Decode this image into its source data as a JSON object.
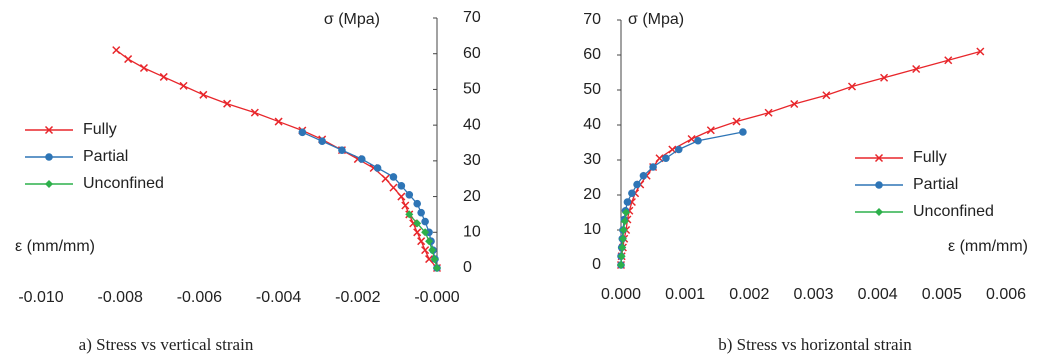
{
  "chart_data": [
    {
      "type": "line",
      "caption": "a) Stress vs vertical strain",
      "y_label": "σ (Mpa)",
      "x_label": "ε (mm/mm)",
      "y_axis_side": "right",
      "legend": "left",
      "xlim": [
        -0.01,
        0.0
      ],
      "ylim": [
        0,
        70
      ],
      "xticks": [
        {
          "value": -0.01,
          "label": "-0.010"
        },
        {
          "value": -0.008,
          "label": "-0.008"
        },
        {
          "value": -0.006,
          "label": "-0.006"
        },
        {
          "value": -0.004,
          "label": "-0.004"
        },
        {
          "value": -0.002,
          "label": "-0.002"
        },
        {
          "value": 0.0,
          "label": "-0.000"
        }
      ],
      "yticks": [
        0,
        10,
        20,
        30,
        40,
        50,
        60,
        70
      ],
      "series": [
        {
          "name": "Fully",
          "color": "#e8262b",
          "marker": "x",
          "x": [
            -0.0081,
            -0.0078,
            -0.0074,
            -0.0069,
            -0.0064,
            -0.0059,
            -0.0053,
            -0.0046,
            -0.004,
            -0.0034,
            -0.0029,
            -0.0024,
            -0.002,
            -0.0016,
            -0.0013,
            -0.0011,
            -0.0009,
            -0.0008,
            -0.0007,
            -0.0006,
            -0.0005,
            -0.0004,
            -0.0003,
            -0.0002,
            0
          ],
          "values": [
            61,
            58.5,
            56,
            53.5,
            51,
            48.5,
            46,
            43.5,
            41,
            38.5,
            36,
            33,
            30.5,
            28,
            25,
            22.5,
            20,
            17.5,
            15,
            12.5,
            10,
            7.5,
            5,
            2.5,
            0
          ]
        },
        {
          "name": "Partial",
          "color": "#2e75b6",
          "marker": "circle",
          "x": [
            -0.0034,
            -0.0029,
            -0.0024,
            -0.0019,
            -0.0015,
            -0.0011,
            -0.0009,
            -0.0007,
            -0.0005,
            -0.0004,
            -0.0003,
            -0.0002,
            -0.00015,
            -0.0001,
            -5e-05,
            0
          ],
          "values": [
            38,
            35.5,
            33,
            30.5,
            28,
            25.5,
            23,
            20.5,
            18,
            15.5,
            13,
            10,
            7.5,
            5,
            2.5,
            0
          ]
        },
        {
          "name": "Unconfined",
          "color": "#2db04b",
          "marker": "diamond",
          "x": [
            -0.0007,
            -0.0005,
            -0.0003,
            -0.0002,
            -0.00012,
            -6e-05,
            0
          ],
          "values": [
            15,
            12.5,
            10,
            7.5,
            5,
            2.5,
            0
          ]
        }
      ]
    },
    {
      "type": "line",
      "caption": "b) Stress vs horizontal strain",
      "y_label": "σ (Mpa)",
      "x_label": "ε (mm/mm)",
      "y_axis_side": "left",
      "legend": "right",
      "xlim": [
        0.0,
        0.006
      ],
      "ylim": [
        0,
        70
      ],
      "xticks": [
        {
          "value": 0.0,
          "label": "0.000"
        },
        {
          "value": 0.001,
          "label": "0.001"
        },
        {
          "value": 0.002,
          "label": "0.002"
        },
        {
          "value": 0.003,
          "label": "0.003"
        },
        {
          "value": 0.004,
          "label": "0.004"
        },
        {
          "value": 0.005,
          "label": "0.005"
        },
        {
          "value": 0.006,
          "label": "0.006"
        }
      ],
      "yticks": [
        0,
        10,
        20,
        30,
        40,
        50,
        60,
        70
      ],
      "series": [
        {
          "name": "Fully",
          "color": "#e8262b",
          "marker": "x",
          "x": [
            0.0056,
            0.0051,
            0.0046,
            0.0041,
            0.0036,
            0.0032,
            0.0027,
            0.0023,
            0.0018,
            0.0014,
            0.0011,
            0.0008,
            0.0006,
            0.0005,
            0.0004,
            0.0003,
            0.00022,
            0.00017,
            0.00013,
            0.0001,
            8e-05,
            5e-05,
            3e-05,
            1e-05,
            0
          ],
          "values": [
            61,
            58.5,
            56,
            53.5,
            51,
            48.5,
            46,
            43.5,
            41,
            38.5,
            36,
            33,
            30.5,
            28,
            25.5,
            23,
            20.5,
            18,
            15.5,
            13,
            10,
            7.5,
            5,
            2.5,
            0
          ]
        },
        {
          "name": "Partial",
          "color": "#2e75b6",
          "marker": "circle",
          "x": [
            0.0019,
            0.0012,
            0.0009,
            0.0007,
            0.0005,
            0.00035,
            0.00025,
            0.00017,
            0.0001,
            7e-05,
            5e-05,
            3e-05,
            2e-05,
            1e-05,
            0,
            0
          ],
          "values": [
            38,
            35.5,
            33,
            30.5,
            28,
            25.5,
            23,
            20.5,
            18,
            15.5,
            13,
            10,
            7.5,
            5,
            2.5,
            0
          ]
        },
        {
          "name": "Unconfined",
          "color": "#2db04b",
          "marker": "diamond",
          "x": [
            8e-05,
            6e-05,
            4e-05,
            3e-05,
            2e-05,
            1e-05,
            0
          ],
          "values": [
            15,
            12.5,
            10,
            7.5,
            5,
            2.5,
            0
          ]
        }
      ]
    }
  ]
}
